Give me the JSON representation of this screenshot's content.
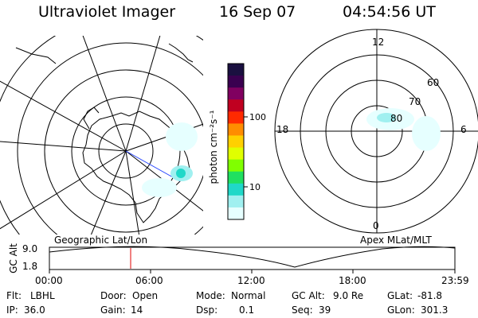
{
  "header": {
    "title": "Ultraviolet Imager",
    "date": "16 Sep 07",
    "time": "04:54:56 UT"
  },
  "colorbar": {
    "unit_label": "photon cm⁻²s⁻¹",
    "ticks": [
      "100",
      "10"
    ],
    "colors": [
      "#1a1040",
      "#3a0050",
      "#800060",
      "#c00020",
      "#ff2a00",
      "#ff8c00",
      "#ffd000",
      "#e0ff00",
      "#80ff00",
      "#20e060",
      "#20d8c8",
      "#a0f0f0",
      "#e6ffff"
    ]
  },
  "left_map": {
    "label": "Geographic Lat/Lon"
  },
  "right_map": {
    "label": "Apex MLat/MLT",
    "mlt_labels": {
      "top": "12",
      "bottom": "0",
      "left": "18",
      "right": "6"
    },
    "lat_labels": [
      "60",
      "70",
      "80"
    ]
  },
  "altitude_plot": {
    "ylabel": "GC Alt",
    "yticks": [
      "9.0",
      "1.8"
    ],
    "xticks": [
      "00:00",
      "06:00",
      "12:00",
      "18:00",
      "23:59"
    ],
    "current_marker_color": "#e00000"
  },
  "info": {
    "row1": [
      {
        "k": "Flt:",
        "v": "LBHL"
      },
      {
        "k": "Door:",
        "v": "Open"
      },
      {
        "k": "Mode:",
        "v": "Normal"
      },
      {
        "k": "GC Alt:",
        "v": "9.0 Re"
      },
      {
        "k": "GLat:",
        "v": "-81.8"
      }
    ],
    "row2": [
      {
        "k": "IP:",
        "v": "36.0"
      },
      {
        "k": "Gain:",
        "v": "14"
      },
      {
        "k": "Dsp:",
        "v": "0.1"
      },
      {
        "k": "Seq:",
        "v": "39"
      },
      {
        "k": "GLon:",
        "v": "301.3"
      }
    ]
  }
}
